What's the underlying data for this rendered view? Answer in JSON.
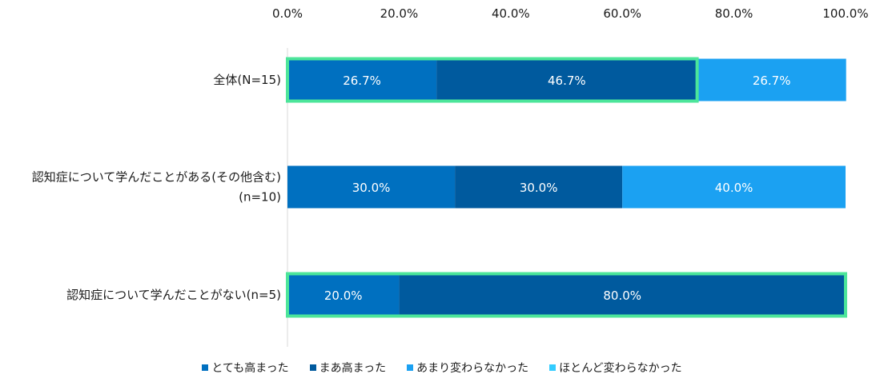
{
  "chart_data": {
    "type": "bar",
    "orientation": "horizontal",
    "stacked": "percent",
    "title": "",
    "xlim": [
      0,
      100
    ],
    "x_ticks": [
      "0.0%",
      "20.0%",
      "40.0%",
      "60.0%",
      "80.0%",
      "100.0%"
    ],
    "categories": [
      [
        "全体(N=15)"
      ],
      [
        "認知症について学んだことがある(その他含む)",
        "(n=10)"
      ],
      [
        "認知症について学んだことがない(n=5)"
      ]
    ],
    "series": [
      {
        "name": "とても高まった",
        "color": "#0070C0",
        "values": [
          26.7,
          30.0,
          20.0
        ],
        "labels": [
          "26.7%",
          "30.0%",
          "20.0%"
        ]
      },
      {
        "name": "まあ高まった",
        "color": "#005A9E",
        "values": [
          46.7,
          30.0,
          80.0
        ],
        "labels": [
          "46.7%",
          "30.0%",
          "80.0%"
        ]
      },
      {
        "name": "あまり変わらなかった",
        "color": "#1BA1F2",
        "values": [
          26.7,
          40.0,
          0
        ],
        "labels": [
          "26.7%",
          "40.0%",
          ""
        ]
      },
      {
        "name": "ほとんど変わらなかった",
        "color": "#33CCFF",
        "values": [
          0,
          0,
          0
        ],
        "labels": [
          "",
          "",
          ""
        ]
      }
    ],
    "highlight_color": "#4CE59A",
    "highlights": [
      {
        "row": 0,
        "from": 0,
        "to": 73.4
      },
      {
        "row": 2,
        "from": 0,
        "to": 100
      }
    ],
    "legend_position": "bottom"
  }
}
